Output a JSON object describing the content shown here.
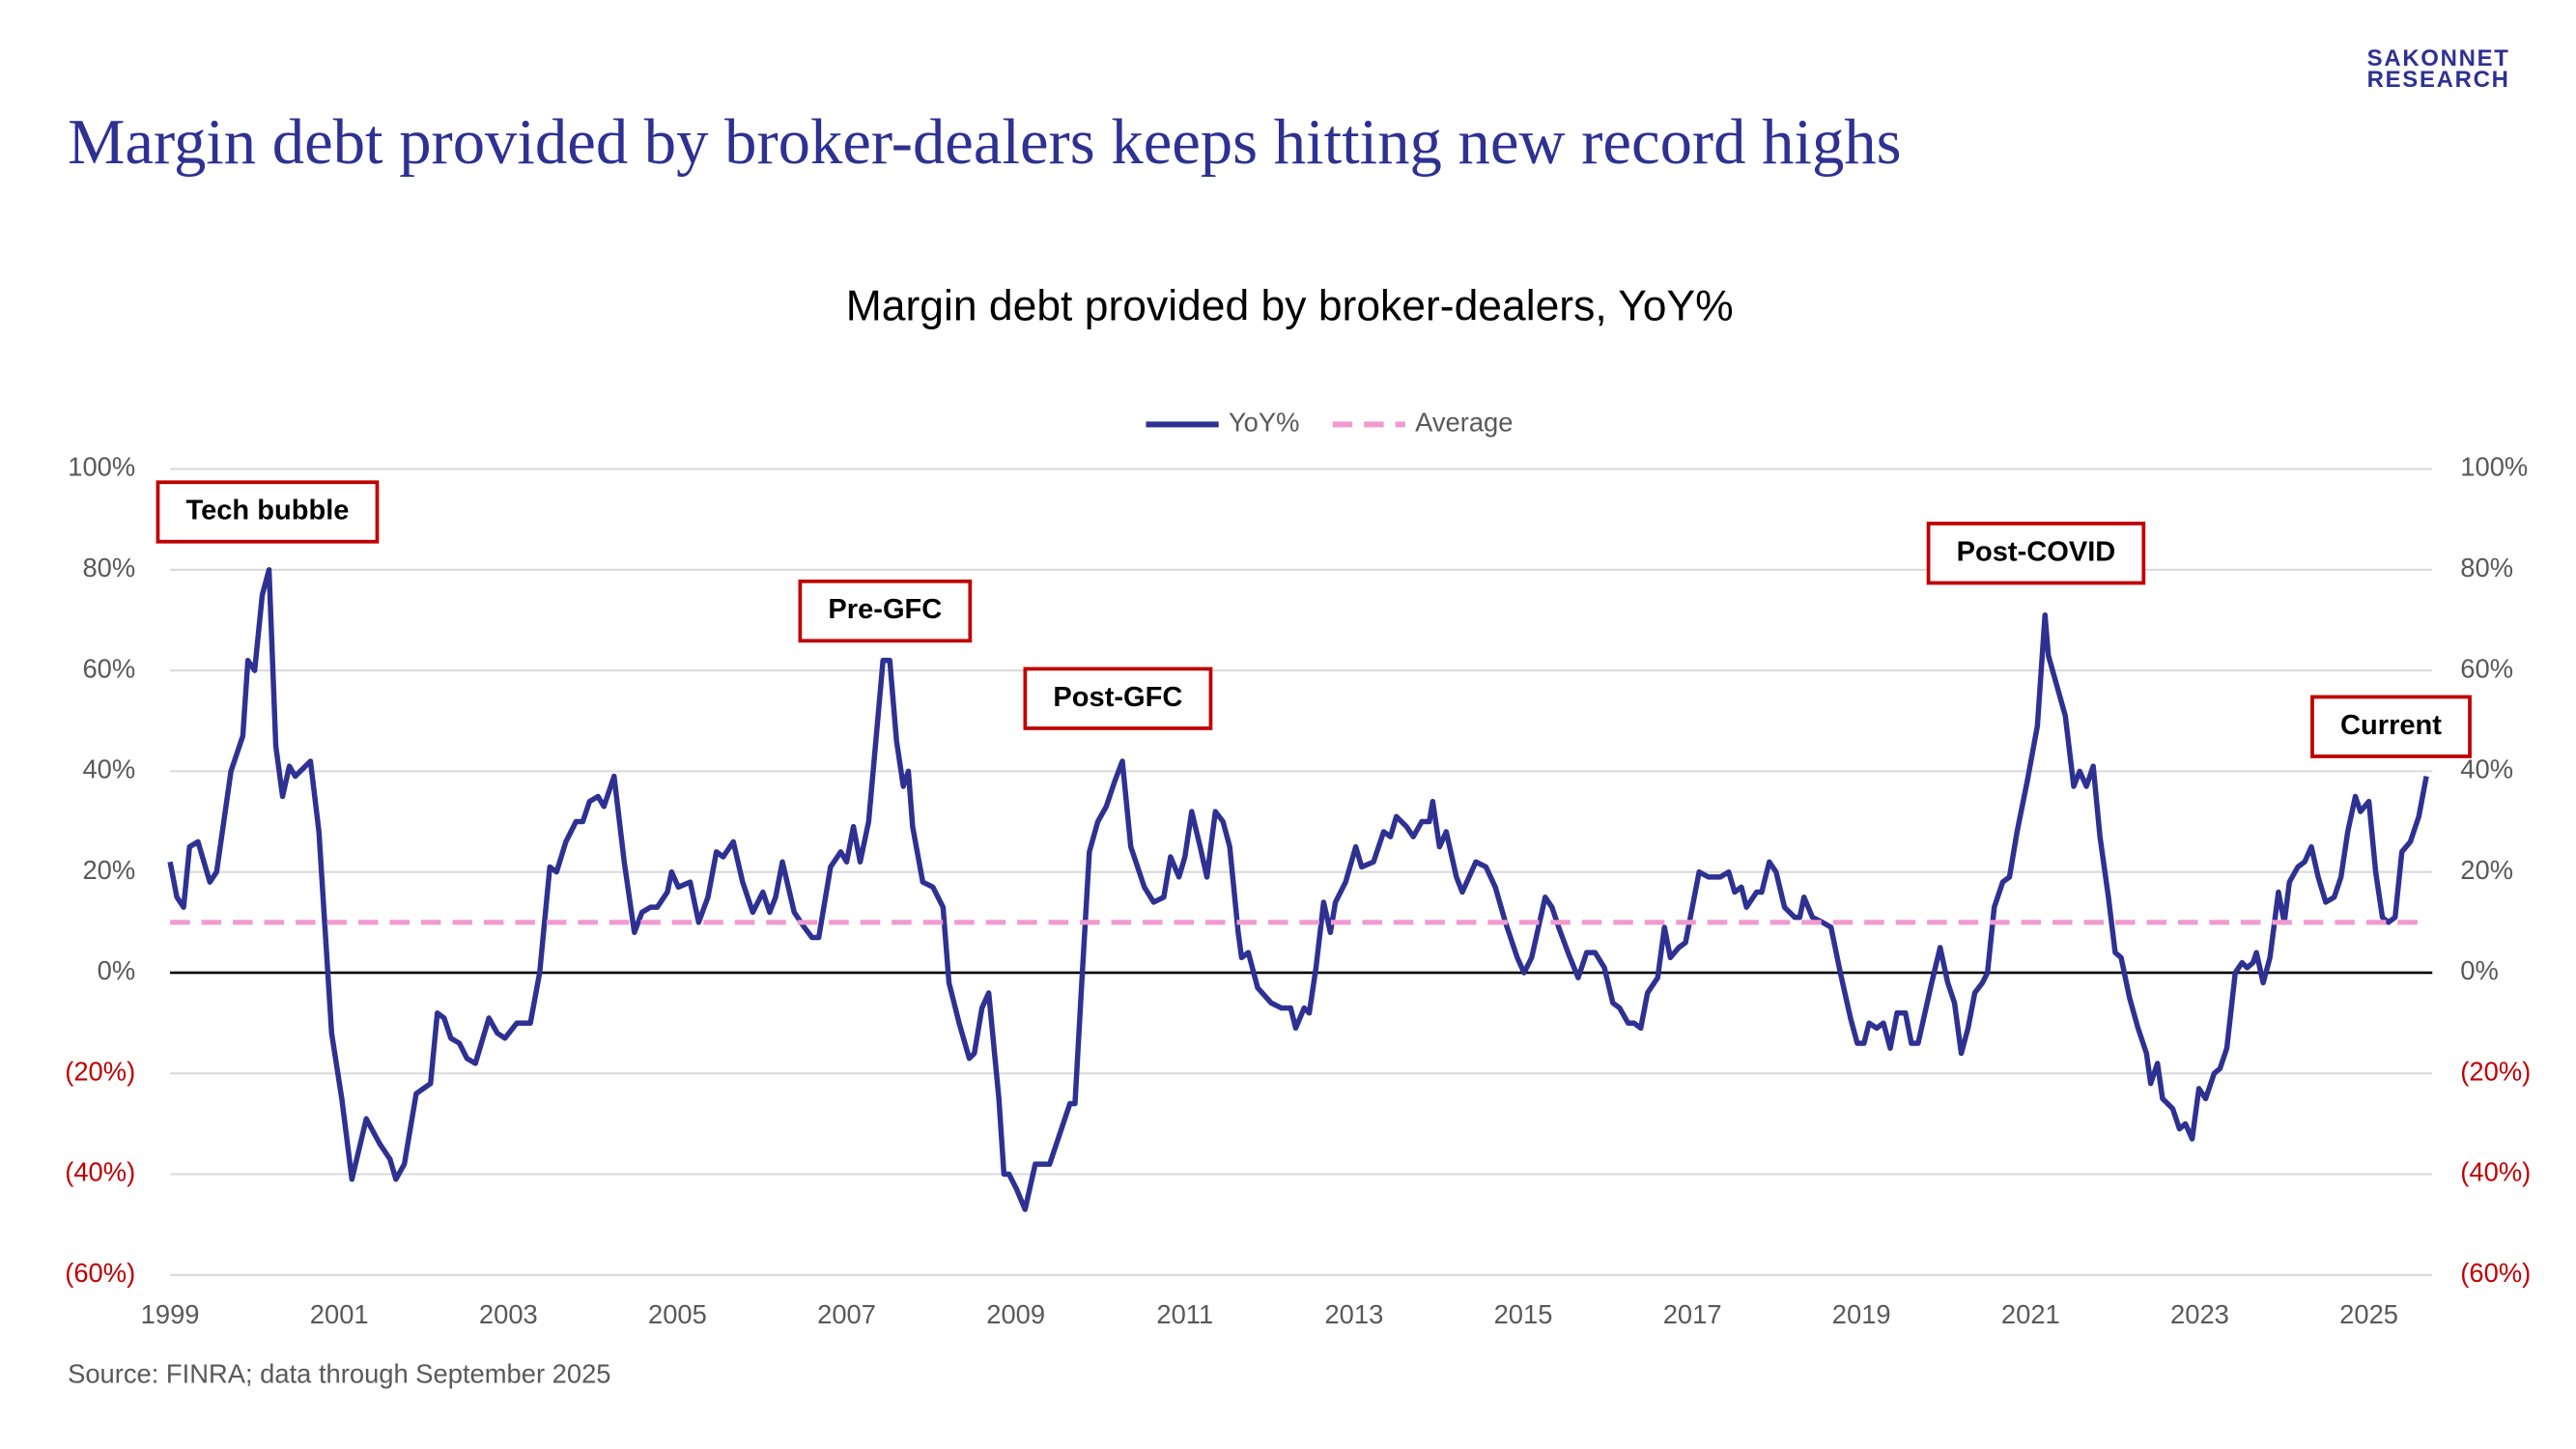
{
  "page_title": "Margin debt provided by broker-dealers keeps hitting new record highs",
  "logo": [
    "SAKONNET",
    "RESEARCH"
  ],
  "source": "Source: FINRA; data through September 2025",
  "chart_data": {
    "type": "line",
    "title": "Margin debt provided by broker-dealers, YoY%",
    "series": [
      {
        "name": "YoY%",
        "color": "#2e3192",
        "style": "solid",
        "x": [
          1999.0,
          1999.08,
          1999.16,
          1999.23,
          1999.33,
          1999.47,
          1999.55,
          1999.72,
          1999.86,
          1999.92,
          2000.0,
          2000.09,
          2000.17,
          2000.25,
          2000.33,
          2000.41,
          2000.48,
          2000.66,
          2000.76,
          2000.91,
          2001.03,
          2001.15,
          2001.32,
          2001.48,
          2001.6,
          2001.67,
          2001.77,
          2001.91,
          2002.08,
          2002.16,
          2002.24,
          2002.32,
          2002.42,
          2002.51,
          2002.61,
          2002.77,
          2002.87,
          2002.96,
          2003.1,
          2003.26,
          2003.37,
          2003.49,
          2003.57,
          2003.68,
          2003.8,
          2003.88,
          2003.96,
          2004.06,
          2004.13,
          2004.25,
          2004.37,
          2004.49,
          2004.58,
          2004.68,
          2004.76,
          2004.88,
          2004.93,
          2005.01,
          2005.15,
          2005.25,
          2005.36,
          2005.46,
          2005.54,
          2005.66,
          2005.77,
          2005.89,
          2006.01,
          2006.09,
          2006.16,
          2006.24,
          2006.38,
          2006.5,
          2006.59,
          2006.67,
          2006.81,
          2006.93,
          2007.0,
          2007.08,
          2007.16,
          2007.26,
          2007.34,
          2007.43,
          2007.51,
          2007.59,
          2007.67,
          2007.73,
          2007.78,
          2007.9,
          2008.02,
          2008.14,
          2008.21,
          2008.33,
          2008.45,
          2008.51,
          2008.6,
          2008.68,
          2008.8,
          2008.86,
          2008.92,
          2009.01,
          2009.11,
          2009.23,
          2009.4,
          2009.54,
          2009.64,
          2009.7,
          2009.78,
          2009.87,
          2009.97,
          2010.07,
          2010.17,
          2010.26,
          2010.36,
          2010.52,
          2010.63,
          2010.75,
          2010.83,
          2010.93,
          2011.0,
          2011.08,
          2011.18,
          2011.26,
          2011.36,
          2011.45,
          2011.53,
          2011.63,
          2011.67,
          2011.75,
          2011.86,
          2012.02,
          2012.14,
          2012.25,
          2012.31,
          2012.41,
          2012.47,
          2012.55,
          2012.64,
          2012.72,
          2012.78,
          2012.9,
          2013.02,
          2013.09,
          2013.23,
          2013.35,
          2013.43,
          2013.5,
          2013.62,
          2013.7,
          2013.8,
          2013.89,
          2013.93,
          2014.01,
          2014.09,
          2014.21,
          2014.28,
          2014.36,
          2014.44,
          2014.56,
          2014.67,
          2014.79,
          2014.93,
          2015.01,
          2015.1,
          2015.18,
          2015.26,
          2015.34,
          2015.42,
          2015.53,
          2015.65,
          2015.75,
          2015.85,
          2015.96,
          2016.06,
          2016.14,
          2016.24,
          2016.31,
          2016.39,
          2016.47,
          2016.59,
          2016.67,
          2016.74,
          2016.84,
          2016.92,
          2017.08,
          2017.19,
          2017.33,
          2017.43,
          2017.5,
          2017.58,
          2017.64,
          2017.76,
          2017.82,
          2017.91,
          2017.99,
          2018.09,
          2018.21,
          2018.27,
          2018.32,
          2018.42,
          2018.54,
          2018.64,
          2018.75,
          2018.87,
          2018.95,
          2019.03,
          2019.09,
          2019.18,
          2019.26,
          2019.34,
          2019.42,
          2019.52,
          2019.59,
          2019.67,
          2019.83,
          2019.93,
          2020.02,
          2020.1,
          2020.18,
          2020.26,
          2020.34,
          2020.43,
          2020.49,
          2020.57,
          2020.67,
          2020.75,
          2020.84,
          2020.96,
          2021.08,
          2021.17,
          2021.21,
          2021.31,
          2021.41,
          2021.51,
          2021.58,
          2021.66,
          2021.74,
          2021.82,
          2021.92,
          2022.0,
          2022.07,
          2022.17,
          2022.27,
          2022.37,
          2022.42,
          2022.5,
          2022.56,
          2022.68,
          2022.76,
          2022.83,
          2022.91,
          2022.99,
          2023.07,
          2023.17,
          2023.24,
          2023.32,
          2023.42,
          2023.5,
          2023.56,
          2023.63,
          2023.67,
          2023.75,
          2023.83,
          2023.93,
          2024.0,
          2024.06,
          2024.16,
          2024.24,
          2024.32,
          2024.4,
          2024.49,
          2024.59,
          2024.67,
          2024.75,
          2024.84,
          2024.9,
          2025.0,
          2025.08,
          2025.16,
          2025.23,
          2025.31,
          2025.39,
          2025.49,
          2025.59,
          2025.68
        ],
        "values": [
          22,
          15,
          13,
          25,
          26,
          18,
          20,
          40,
          47,
          62,
          60,
          75,
          80,
          45,
          35,
          41,
          39,
          42,
          28,
          -12,
          -25,
          -41,
          -29,
          -34,
          -37,
          -41,
          -38,
          -24,
          -22,
          -8,
          -9,
          -13,
          -14,
          -17,
          -18,
          -9,
          -12,
          -13,
          -10,
          -10,
          0,
          21,
          20,
          26,
          30,
          30,
          34,
          35,
          33,
          39,
          22,
          8,
          12,
          13,
          13,
          16,
          20,
          17,
          18,
          10,
          15,
          24,
          23,
          26,
          18,
          12,
          16,
          12,
          15,
          22,
          12,
          9,
          7,
          7,
          21,
          24,
          22,
          29,
          22,
          30,
          45,
          62,
          62,
          46,
          37,
          40,
          29,
          18,
          17,
          13,
          -2,
          -10,
          -17,
          -16,
          -7,
          -4,
          -25,
          -40,
          -40,
          -43,
          -47,
          -38,
          -38,
          -31,
          -26,
          -26,
          -2,
          24,
          30,
          33,
          38,
          42,
          25,
          17,
          14,
          15,
          23,
          19,
          23,
          32,
          25,
          19,
          32,
          30,
          25,
          8,
          3,
          4,
          -3,
          -6,
          -7,
          -7,
          -11,
          -7,
          -8,
          1,
          14,
          8,
          14,
          18,
          25,
          21,
          22,
          28,
          27,
          31,
          29,
          27,
          30,
          30,
          34,
          25,
          28,
          19,
          16,
          19,
          22,
          21,
          17,
          10,
          3,
          0,
          3,
          9,
          15,
          13,
          9,
          4,
          -1,
          4,
          4,
          1,
          -6,
          -7,
          -10,
          -10,
          -11,
          -4,
          -1,
          9,
          3,
          5,
          6,
          20,
          19,
          19,
          20,
          16,
          17,
          13,
          16,
          16,
          22,
          20,
          13,
          11,
          11,
          15,
          11,
          10,
          9,
          0,
          -9,
          -14,
          -14,
          -10,
          -11,
          -10,
          -15,
          -8,
          -8,
          -14,
          -14,
          -2,
          5,
          -2,
          -6,
          -16,
          -11,
          -4,
          -2,
          0,
          13,
          18,
          19,
          28,
          38,
          49,
          71,
          63,
          57,
          51,
          37,
          40,
          37,
          41,
          27,
          15,
          4,
          3,
          -5,
          -11,
          -16,
          -22,
          -18,
          -25,
          -27,
          -31,
          -30,
          -33,
          -23,
          -25,
          -20,
          -19,
          -15,
          0,
          2,
          1,
          2,
          4,
          -2,
          3,
          16,
          10,
          18,
          21,
          22,
          25,
          19,
          14,
          15,
          19,
          28,
          35,
          32,
          34,
          20,
          11,
          10,
          11,
          24,
          26,
          31,
          39
        ]
      },
      {
        "name": "Average",
        "color": "#f09ad0",
        "style": "dashed",
        "x": [
          1999.0,
          2025.68
        ],
        "values": [
          10,
          10
        ]
      }
    ],
    "xlim": [
      1999,
      2025.75
    ],
    "xticks": [
      1999,
      2001,
      2003,
      2005,
      2007,
      2009,
      2011,
      2013,
      2015,
      2017,
      2019,
      2021,
      2023,
      2025
    ],
    "ylim": [
      -60,
      100
    ],
    "yticks": [
      {
        "value": 100,
        "label": "100%"
      },
      {
        "value": 80,
        "label": "80%"
      },
      {
        "value": 60,
        "label": "60%"
      },
      {
        "value": 40,
        "label": "40%"
      },
      {
        "value": 20,
        "label": "20%"
      },
      {
        "value": 0,
        "label": "0%"
      },
      {
        "value": -20,
        "label": "(20%)"
      },
      {
        "value": -40,
        "label": "(40%)"
      },
      {
        "value": -60,
        "label": "(60%)"
      }
    ],
    "y2lim": [
      -60,
      100
    ],
    "y2ticks": [
      {
        "value": 100,
        "label": "100%"
      },
      {
        "value": 80,
        "label": "80%"
      },
      {
        "value": 60,
        "label": "60%"
      },
      {
        "value": 40,
        "label": "40%"
      },
      {
        "value": 20,
        "label": "20%"
      },
      {
        "value": 0,
        "label": "0%"
      },
      {
        "value": -20,
        "label": "(20%)"
      },
      {
        "value": -40,
        "label": "(40%)"
      },
      {
        "value": -60,
        "label": "(60%)"
      }
    ],
    "negative_tick_color": "#c00000",
    "grid": true,
    "legend": "top",
    "annotations": [
      "Tech bubble",
      "Pre-GFC",
      "Post-GFC",
      "Post-COVID",
      "Current"
    ],
    "annotation_border_color": "#c00000"
  }
}
